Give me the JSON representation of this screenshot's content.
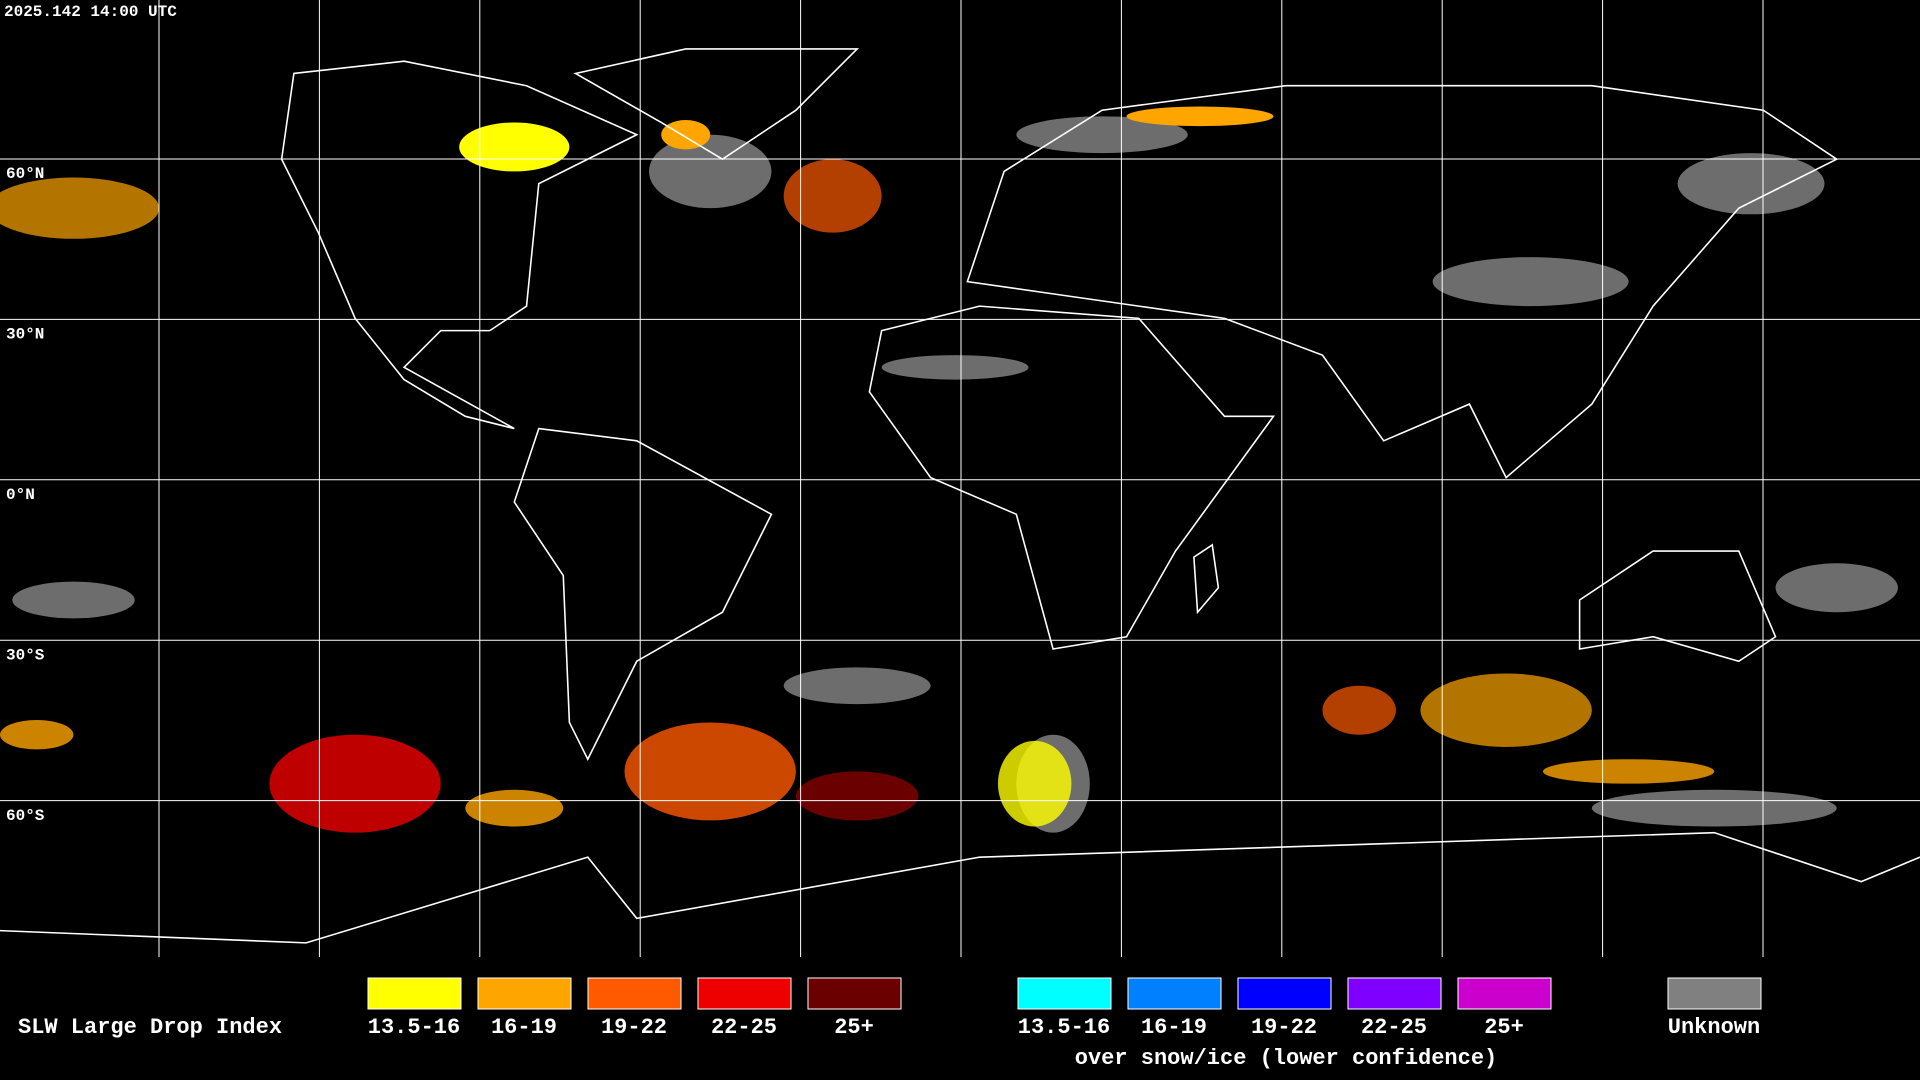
{
  "header": {
    "timestamp": "2025.142 14:00 UTC"
  },
  "map": {
    "latitude_labels": [
      "60°N",
      "30°N",
      "0°N",
      "30°S",
      "60°S"
    ]
  },
  "legend": {
    "title": "SLW Large Drop Index",
    "classes": [
      {
        "label": "13.5-16",
        "color": "#ffff00"
      },
      {
        "label": "16-19",
        "color": "#ffa500"
      },
      {
        "label": "19-22",
        "color": "#ff5a00"
      },
      {
        "label": "22-25",
        "color": "#ee0000"
      },
      {
        "label": "25+",
        "color": "#6a0000"
      }
    ],
    "snow_ice_classes": [
      {
        "label": "13.5-16",
        "color": "#00ffff"
      },
      {
        "label": "16-19",
        "color": "#0080ff"
      },
      {
        "label": "19-22",
        "color": "#0000ff"
      },
      {
        "label": "22-25",
        "color": "#7f00ff"
      },
      {
        "label": "25+",
        "color": "#cc00cc"
      }
    ],
    "snow_ice_caption": "over snow/ice (lower confidence)",
    "unknown": {
      "label": "Unknown",
      "color": "#808080"
    }
  }
}
